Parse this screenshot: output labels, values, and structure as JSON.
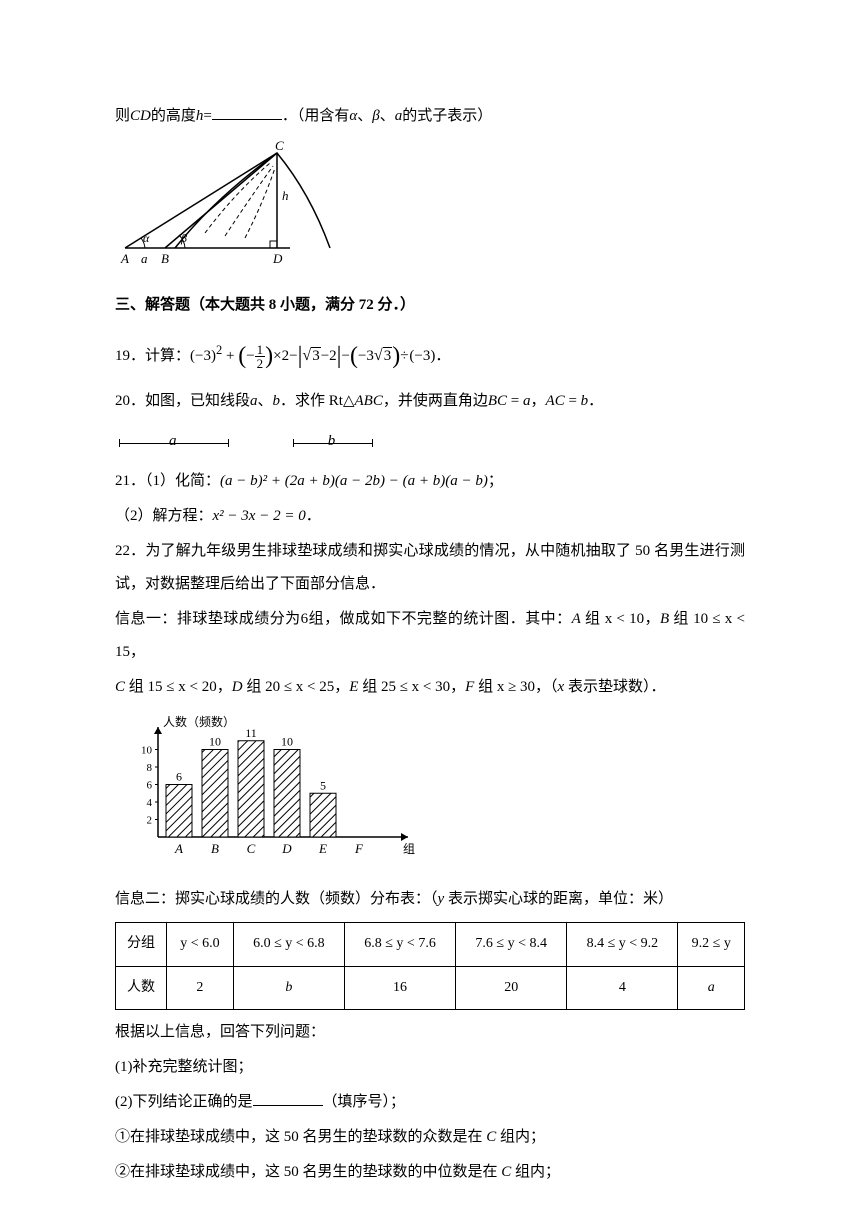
{
  "q_cd": {
    "prefix": "则",
    "cd": "CD",
    "text1": "的高度",
    "h": "h",
    "eq": "=",
    "text2": "．（用含有",
    "alpha": "α",
    "sep1": "、",
    "beta": "β",
    "sep2": "、",
    "a": "a",
    "text3": "的式子表示）"
  },
  "diagram1": {
    "labels": {
      "A": "A",
      "B": "B",
      "C": "C",
      "D": "D",
      "a": "a",
      "h": "h",
      "alpha": "α",
      "beta": "β"
    }
  },
  "section3": "三、解答题（本大题共 8 小题，满分 72 分．）",
  "q19": {
    "num": "19．",
    "label": "计算：",
    "expr_parts": {
      "p1": "(−3)",
      "sup2": "2",
      "plus1": " + ",
      "neg": "−",
      "frac_num": "1",
      "frac_den": "2",
      "times2": "×2−",
      "sqrt3": "3",
      "minus2": "−2",
      "minus": "−",
      "neg3sqrt3_a": "−3",
      "div": "÷",
      "neg3b": "(−3)",
      "period": "．"
    }
  },
  "q20": {
    "num": "20．",
    "text1": "如图，已知线段",
    "a": "a",
    "sep": "、",
    "b": "b",
    "text2": "．求作 Rt△",
    "ABC": "ABC",
    "text3": "，并使两直角边",
    "BC": "BC",
    "eq1": " = ",
    "av": "a",
    "comma": "，",
    "AC": "AC",
    "eq2": " = ",
    "bv": "b",
    "period": "．"
  },
  "segments": {
    "a": "a",
    "b": "b"
  },
  "q21": {
    "num": "21．",
    "part1_label": "（1）化简：",
    "part1_expr": "(a − b)² + (2a + b)(a − 2b) − (a + b)(a − b)",
    "semicolon": "；",
    "part2_label": "（2）解方程：",
    "part2_expr": "x² − 3x − 2 = 0",
    "period": "．"
  },
  "q22": {
    "num": "22．",
    "text1": "为了解九年级男生排球垫球成绩和掷实心球成绩的情况，从中随机抽取了 50 名男生进行测试，对数据整理后给出了下面部分信息．",
    "info1_label": "信息一：",
    "info1_text": "排球垫球成绩分为6组，做成如下不完整的统计图．其中：",
    "groupA": "A",
    "condA": " 组 x < 10，",
    "groupB": "B",
    "condB": " 组 10 ≤ x < 15，",
    "groupC": "C",
    "condC": " 组 15 ≤ x < 20，",
    "groupD": "D",
    "condD": " 组 20 ≤ x < 25，",
    "groupE": "E",
    "condE": " 组 25 ≤ x < 30，",
    "groupF": "F",
    "condF": " 组 x ≥ 30，（",
    "xnote": "x",
    "xnote_text": " 表示垫球数）．",
    "chart": {
      "ylabel": "人数（频数）",
      "xlabel": "组",
      "categories": [
        "A",
        "B",
        "C",
        "D",
        "E",
        "F"
      ],
      "values": [
        6,
        10,
        11,
        10,
        5,
        null
      ],
      "labels": [
        "6",
        "10",
        "11",
        "10",
        "5",
        ""
      ],
      "yticks": [
        2,
        4,
        6,
        8,
        10
      ],
      "bar_fill": "#ffffff",
      "bar_stroke": "#000000",
      "hatch": true
    },
    "info2_label": "信息二：",
    "info2_text": "掷实心球成绩的人数（频数）分布表：（",
    "y": "y",
    "info2_text2": " 表示掷实心球的距离，单位：米）",
    "table": {
      "header": [
        "分组",
        "y < 6.0",
        "6.0 ≤ y < 6.8",
        "6.8 ≤ y < 7.6",
        "7.6 ≤ y < 8.4",
        "8.4 ≤ y < 9.2",
        "9.2 ≤ y"
      ],
      "row": [
        "人数",
        "2",
        "b",
        "16",
        "20",
        "4",
        "a"
      ]
    },
    "after_table": "根据以上信息，回答下列问题：",
    "sub1": "(1)补充完整统计图；",
    "sub2_a": "(2)下列结论正确的是",
    "sub2_b": "（填序号）；",
    "stmt1_num": "①",
    "stmt1": "在排球垫球成绩中，这 50 名男生的垫球数的众数是在 ",
    "stmt1_c": "C",
    "stmt1_end": " 组内；",
    "stmt2_num": "②",
    "stmt2": "在排球垫球成绩中，这 50 名男生的垫球数的中位数是在 ",
    "stmt2_c": "C",
    "stmt2_end": " 组内；"
  }
}
